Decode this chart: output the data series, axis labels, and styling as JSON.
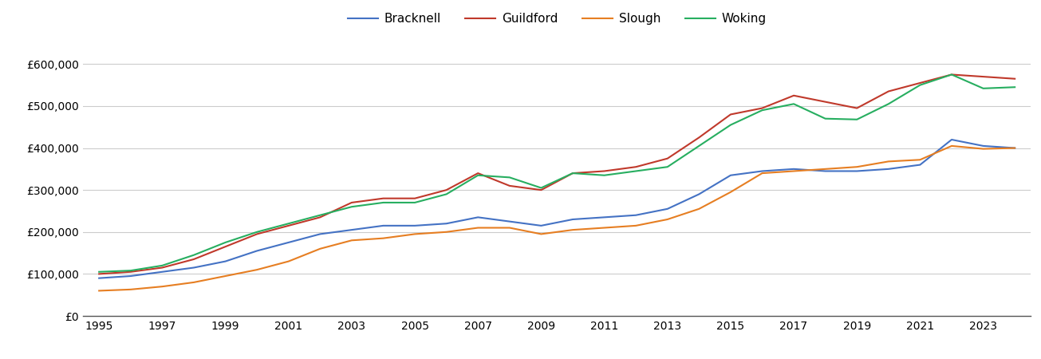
{
  "years": [
    1995,
    1996,
    1997,
    1998,
    1999,
    2000,
    2001,
    2002,
    2003,
    2004,
    2005,
    2006,
    2007,
    2008,
    2009,
    2010,
    2011,
    2012,
    2013,
    2014,
    2015,
    2016,
    2017,
    2018,
    2019,
    2020,
    2021,
    2022,
    2023,
    2024
  ],
  "bracknell": [
    90000,
    95000,
    105000,
    115000,
    130000,
    155000,
    175000,
    195000,
    205000,
    215000,
    215000,
    220000,
    235000,
    225000,
    215000,
    230000,
    235000,
    240000,
    255000,
    290000,
    335000,
    345000,
    350000,
    345000,
    345000,
    350000,
    360000,
    420000,
    405000,
    400000
  ],
  "guildford": [
    100000,
    105000,
    115000,
    135000,
    165000,
    195000,
    215000,
    235000,
    270000,
    280000,
    280000,
    300000,
    340000,
    310000,
    300000,
    340000,
    345000,
    355000,
    375000,
    425000,
    480000,
    495000,
    525000,
    510000,
    495000,
    535000,
    555000,
    575000,
    570000,
    565000
  ],
  "slough": [
    60000,
    63000,
    70000,
    80000,
    95000,
    110000,
    130000,
    160000,
    180000,
    185000,
    195000,
    200000,
    210000,
    210000,
    195000,
    205000,
    210000,
    215000,
    230000,
    255000,
    295000,
    340000,
    345000,
    350000,
    355000,
    368000,
    372000,
    405000,
    398000,
    400000
  ],
  "woking": [
    105000,
    108000,
    120000,
    145000,
    175000,
    200000,
    220000,
    240000,
    260000,
    270000,
    270000,
    290000,
    335000,
    330000,
    305000,
    340000,
    335000,
    345000,
    355000,
    405000,
    455000,
    490000,
    505000,
    470000,
    468000,
    505000,
    550000,
    575000,
    542000,
    545000
  ],
  "colors": {
    "bracknell": "#4472c4",
    "guildford": "#c0392b",
    "slough": "#e67e22",
    "woking": "#27ae60"
  },
  "ylim": [
    0,
    650000
  ],
  "yticks": [
    0,
    100000,
    200000,
    300000,
    400000,
    500000,
    600000
  ],
  "xtick_years": [
    1995,
    1997,
    1999,
    2001,
    2003,
    2005,
    2007,
    2009,
    2011,
    2013,
    2015,
    2017,
    2019,
    2021,
    2023
  ],
  "xlim_left": 1994.5,
  "xlim_right": 2024.5,
  "background_color": "#ffffff",
  "grid_color": "#cccccc",
  "legend_labels": [
    "Bracknell",
    "Guildford",
    "Slough",
    "Woking"
  ]
}
